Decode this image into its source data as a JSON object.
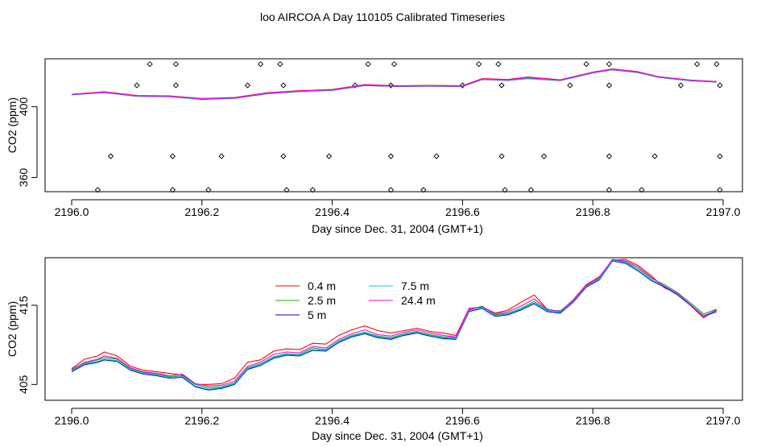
{
  "title": "loo AIRCOA A  Day 110105  Calibrated Timeseries",
  "chart_data": [
    {
      "type": "line",
      "title": "",
      "xlabel": "Day since Dec. 31, 2004 (GMT+1)",
      "ylabel": "CO2 (ppm)",
      "xlim": [
        2196.0,
        2197.0
      ],
      "ylim": [
        352,
        427
      ],
      "x_ticks": [
        "2196.0",
        "2196.2",
        "2196.4",
        "2196.6",
        "2196.8",
        "2197.0"
      ],
      "y_ticks": [
        "360",
        "400"
      ],
      "colors": [
        "#ff0000",
        "#00bb00",
        "#0000ff",
        "#00cccc",
        "#ff00ff"
      ],
      "x": [
        2196.0,
        2196.05,
        2196.1,
        2196.15,
        2196.2,
        2196.25,
        2196.3,
        2196.35,
        2196.4,
        2196.45,
        2196.5,
        2196.55,
        2196.6,
        2196.63,
        2196.67,
        2196.7,
        2196.75,
        2196.8,
        2196.83,
        2196.87,
        2196.9,
        2196.95,
        2196.99
      ],
      "series": [
        {
          "values": [
            407.0,
            408.4,
            406.3,
            406.1,
            404.6,
            405.2,
            407.8,
            409.0,
            409.7,
            412.4,
            411.8,
            412.0,
            411.8,
            415.8,
            415.3,
            416.7,
            415.2,
            419.5,
            421.3,
            419.7,
            417.0,
            415.0,
            414.2
          ]
        },
        {
          "values": [
            406.8,
            408.1,
            406.0,
            405.8,
            404.3,
            404.9,
            407.5,
            408.7,
            409.4,
            412.1,
            411.5,
            411.7,
            411.5,
            415.5,
            415.0,
            416.0,
            414.9,
            419.2,
            421.0,
            419.4,
            416.8,
            414.8,
            414.0
          ]
        },
        {
          "values": [
            406.7,
            407.9,
            405.8,
            405.6,
            404.1,
            404.7,
            407.3,
            408.5,
            409.2,
            411.9,
            411.3,
            411.5,
            411.3,
            415.3,
            414.8,
            415.8,
            414.7,
            419.0,
            420.8,
            419.2,
            416.6,
            414.6,
            413.8
          ]
        },
        {
          "values": [
            406.8,
            408.0,
            405.9,
            405.7,
            404.2,
            404.8,
            407.4,
            408.6,
            409.3,
            412.0,
            411.4,
            411.6,
            411.4,
            415.4,
            414.9,
            415.9,
            414.8,
            419.1,
            420.9,
            419.3,
            416.7,
            414.7,
            413.9
          ]
        },
        {
          "values": [
            406.9,
            408.2,
            406.1,
            405.9,
            404.4,
            405.0,
            407.6,
            408.8,
            409.5,
            412.2,
            411.6,
            411.8,
            411.6,
            415.6,
            415.1,
            416.3,
            415.0,
            419.3,
            421.1,
            419.5,
            416.9,
            414.9,
            414.1
          ]
        }
      ],
      "scatter_points": [
        [
          2196.04,
          353
        ],
        [
          2196.06,
          372
        ],
        [
          2196.1,
          412
        ],
        [
          2196.12,
          424
        ],
        [
          2196.155,
          353
        ],
        [
          2196.155,
          372
        ],
        [
          2196.16,
          412
        ],
        [
          2196.16,
          424
        ],
        [
          2196.21,
          353
        ],
        [
          2196.23,
          372
        ],
        [
          2196.27,
          412
        ],
        [
          2196.29,
          424
        ],
        [
          2196.32,
          424
        ],
        [
          2196.325,
          412
        ],
        [
          2196.325,
          372
        ],
        [
          2196.33,
          353
        ],
        [
          2196.37,
          353
        ],
        [
          2196.395,
          372
        ],
        [
          2196.435,
          412
        ],
        [
          2196.455,
          424
        ],
        [
          2196.49,
          353
        ],
        [
          2196.49,
          372
        ],
        [
          2196.49,
          412
        ],
        [
          2196.495,
          424
        ],
        [
          2196.54,
          353
        ],
        [
          2196.56,
          372
        ],
        [
          2196.6,
          412
        ],
        [
          2196.625,
          424
        ],
        [
          2196.655,
          424
        ],
        [
          2196.66,
          412
        ],
        [
          2196.66,
          372
        ],
        [
          2196.665,
          353
        ],
        [
          2196.705,
          353
        ],
        [
          2196.725,
          372
        ],
        [
          2196.765,
          412
        ],
        [
          2196.79,
          424
        ],
        [
          2196.825,
          424
        ],
        [
          2196.825,
          412
        ],
        [
          2196.825,
          372
        ],
        [
          2196.825,
          353
        ],
        [
          2196.875,
          353
        ],
        [
          2196.895,
          372
        ],
        [
          2196.935,
          412
        ],
        [
          2196.96,
          424
        ],
        [
          2196.99,
          424
        ],
        [
          2196.995,
          412
        ],
        [
          2196.995,
          372
        ],
        [
          2196.995,
          353
        ]
      ]
    },
    {
      "type": "line",
      "title": "",
      "xlabel": "Day since Dec. 31, 2004 (GMT+1)",
      "ylabel": "CO2 (ppm)",
      "xlim": [
        2196.0,
        2197.0
      ],
      "ylim": [
        403,
        421
      ],
      "x_ticks": [
        "2196.0",
        "2196.2",
        "2196.4",
        "2196.6",
        "2196.8",
        "2197.0"
      ],
      "y_ticks": [
        "405",
        "415"
      ],
      "legend": "top-left",
      "x": [
        2196.0,
        2196.02,
        2196.04,
        2196.05,
        2196.07,
        2196.09,
        2196.11,
        2196.13,
        2196.15,
        2196.17,
        2196.19,
        2196.21,
        2196.23,
        2196.25,
        2196.27,
        2196.29,
        2196.31,
        2196.33,
        2196.35,
        2196.37,
        2196.39,
        2196.41,
        2196.43,
        2196.45,
        2196.47,
        2196.49,
        2196.51,
        2196.53,
        2196.55,
        2196.57,
        2196.59,
        2196.61,
        2196.63,
        2196.65,
        2196.67,
        2196.69,
        2196.71,
        2196.73,
        2196.75,
        2196.77,
        2196.79,
        2196.81,
        2196.83,
        2196.85,
        2196.87,
        2196.89,
        2196.91,
        2196.93,
        2196.95,
        2196.97,
        2196.99
      ],
      "series": [
        {
          "name": "0.4 m",
          "color": "#ff0000",
          "values": [
            407.0,
            408.2,
            408.6,
            409.1,
            408.6,
            407.3,
            406.8,
            406.6,
            406.4,
            406.2,
            405.0,
            405.0,
            405.1,
            405.8,
            407.8,
            408.1,
            409.2,
            409.5,
            409.4,
            410.2,
            410.1,
            411.2,
            411.9,
            412.4,
            411.8,
            411.5,
            411.8,
            412.1,
            411.7,
            411.5,
            411.2,
            414.6,
            414.8,
            414.0,
            414.4,
            415.4,
            416.3,
            414.5,
            414.2,
            415.7,
            417.6,
            418.6,
            420.7,
            420.8,
            420.0,
            418.7,
            417.2,
            416.5,
            415.0,
            413.4,
            414.5
          ]
        },
        {
          "name": "2.5 m",
          "color": "#00bb00",
          "values": [
            406.8,
            407.7,
            408.1,
            408.4,
            408.2,
            407.0,
            406.5,
            406.3,
            406.0,
            406.1,
            405.0,
            404.6,
            404.7,
            405.2,
            407.1,
            407.6,
            408.5,
            408.9,
            408.8,
            409.6,
            409.4,
            410.5,
            411.2,
            411.6,
            411.1,
            410.9,
            411.4,
            411.7,
            411.3,
            411.0,
            410.9,
            414.4,
            414.9,
            413.8,
            414.0,
            414.6,
            415.5,
            414.4,
            414.3,
            415.6,
            417.5,
            418.4,
            420.8,
            420.5,
            419.6,
            418.4,
            417.6,
            416.6,
            415.3,
            413.9,
            414.5
          ]
        },
        {
          "name": "5 m",
          "color": "#0000ff",
          "values": [
            406.6,
            407.5,
            407.8,
            408.1,
            407.9,
            406.8,
            406.3,
            406.1,
            405.8,
            405.9,
            404.7,
            404.3,
            404.5,
            405.0,
            406.9,
            407.4,
            408.3,
            408.7,
            408.6,
            409.3,
            409.2,
            410.3,
            411.0,
            411.4,
            410.9,
            410.7,
            411.2,
            411.5,
            411.1,
            410.8,
            410.7,
            414.2,
            414.6,
            413.6,
            413.8,
            414.4,
            415.2,
            414.2,
            414.0,
            415.4,
            417.3,
            418.2,
            420.6,
            420.3,
            419.3,
            418.1,
            417.3,
            416.3,
            415.0,
            413.6,
            414.2
          ]
        },
        {
          "name": "7.5 m",
          "color": "#00cccc",
          "values": [
            406.7,
            407.6,
            407.9,
            408.2,
            408.0,
            406.9,
            406.4,
            406.2,
            405.9,
            406.0,
            404.8,
            404.4,
            404.6,
            405.1,
            407.0,
            407.5,
            408.4,
            408.8,
            408.7,
            409.4,
            409.3,
            410.4,
            411.1,
            411.5,
            411.0,
            410.8,
            411.3,
            411.6,
            411.2,
            410.9,
            410.8,
            414.3,
            414.7,
            413.7,
            413.9,
            414.5,
            415.3,
            414.3,
            414.1,
            415.5,
            417.4,
            418.3,
            420.7,
            420.4,
            419.4,
            418.2,
            417.4,
            416.4,
            415.1,
            413.7,
            414.3
          ]
        },
        {
          "name": "24.4 m",
          "color": "#ff00ff",
          "values": [
            406.9,
            407.8,
            408.2,
            408.6,
            408.3,
            407.1,
            406.6,
            406.4,
            406.1,
            406.3,
            405.1,
            404.8,
            404.9,
            405.4,
            407.3,
            407.8,
            408.8,
            409.1,
            409.0,
            409.8,
            409.6,
            410.7,
            411.4,
            411.9,
            411.3,
            411.1,
            411.6,
            411.9,
            411.5,
            411.2,
            411.0,
            414.5,
            414.8,
            413.9,
            414.2,
            414.9,
            415.8,
            414.5,
            414.2,
            415.6,
            417.5,
            418.5,
            420.8,
            420.6,
            419.8,
            418.5,
            417.4,
            416.5,
            415.1,
            413.6,
            414.4
          ]
        }
      ]
    }
  ]
}
